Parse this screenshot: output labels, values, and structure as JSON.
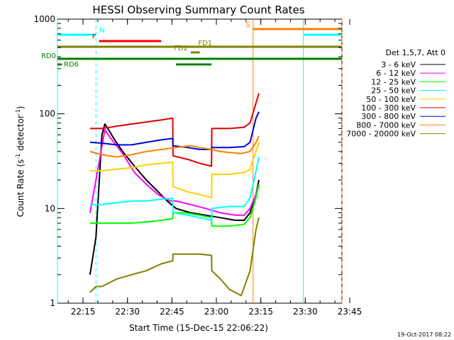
{
  "chart_data": {
    "type": "line",
    "title": "HESSI Observing Summary Count Rates",
    "xlabel": "Start Time (15-Dec-15 22:06:22)",
    "ylabel_main": "Count Rate (s",
    "ylabel_exp1": "-1",
    "ylabel_mid": " detector",
    "ylabel_exp2": "-1",
    "ylabel_end": ")",
    "yscale": "log",
    "ylim": [
      1,
      1000
    ],
    "xlim_minutes": [
      0,
      96
    ],
    "x_tick_labels": [
      "22:15",
      "22:30",
      "22:45",
      "23:00",
      "23:15",
      "23:30",
      "23:45"
    ],
    "x_tick_minutes": [
      8.63,
      23.63,
      38.63,
      53.63,
      68.63,
      83.63,
      98.63
    ],
    "y_tick_labels": [
      "1",
      "10",
      "100",
      "1000"
    ],
    "y_tick_values": [
      1,
      10,
      100,
      1000
    ],
    "legend_header": "Det 1,5,7, Att 0",
    "legend_position": "right",
    "series": [
      {
        "name": "3 - 6 keV",
        "color": "#000000",
        "points": [
          [
            11,
            2
          ],
          [
            13,
            5
          ],
          [
            15,
            60
          ],
          [
            16,
            78
          ],
          [
            17,
            70
          ],
          [
            19,
            55
          ],
          [
            22,
            40
          ],
          [
            26,
            28
          ],
          [
            30,
            20
          ],
          [
            34,
            15
          ],
          [
            37,
            12
          ],
          [
            40,
            10
          ],
          [
            45,
            9
          ],
          [
            50,
            8.5
          ],
          [
            55,
            8
          ],
          [
            60,
            7.5
          ],
          [
            63,
            7.5
          ],
          [
            65,
            9
          ],
          [
            67,
            14
          ],
          [
            68,
            20
          ]
        ]
      },
      {
        "name": "6 - 12 keV",
        "color": "#ff00ff",
        "points": [
          [
            11,
            9
          ],
          [
            14,
            30
          ],
          [
            16,
            68
          ],
          [
            18,
            55
          ],
          [
            22,
            38
          ],
          [
            26,
            24
          ],
          [
            30,
            18
          ],
          [
            34,
            14
          ],
          [
            38,
            12
          ],
          [
            40,
            12
          ],
          [
            45,
            11
          ],
          [
            50,
            10
          ],
          [
            55,
            9
          ],
          [
            60,
            8.5
          ],
          [
            63,
            8.5
          ],
          [
            65,
            10
          ],
          [
            67,
            14
          ],
          [
            68,
            18
          ]
        ]
      },
      {
        "name": "12 - 25 keV",
        "color": "#00ff00",
        "points": [
          [
            11,
            7
          ],
          [
            15,
            7
          ],
          [
            20,
            7
          ],
          [
            25,
            7
          ],
          [
            30,
            7.2
          ],
          [
            35,
            7.5
          ],
          [
            38.9,
            7.8
          ],
          [
            39,
            9
          ],
          [
            43,
            9
          ],
          [
            48,
            8.5
          ],
          [
            52,
            8
          ],
          [
            52.1,
            6.5
          ],
          [
            58,
            6.5
          ],
          [
            63,
            6.8
          ],
          [
            65,
            8
          ],
          [
            67,
            13
          ],
          [
            68,
            18
          ]
        ]
      },
      {
        "name": "25 - 50 keV",
        "color": "#00ffff",
        "points": [
          [
            11,
            11
          ],
          [
            15,
            11
          ],
          [
            20,
            11.5
          ],
          [
            25,
            12
          ],
          [
            30,
            12
          ],
          [
            35,
            12.5
          ],
          [
            38.9,
            12.8
          ],
          [
            39,
            9
          ],
          [
            44,
            8.5
          ],
          [
            48,
            8
          ],
          [
            52,
            7.5
          ],
          [
            52.1,
            10
          ],
          [
            58,
            10.5
          ],
          [
            63,
            10.5
          ],
          [
            65,
            13
          ],
          [
            67,
            25
          ],
          [
            68,
            35
          ]
        ]
      },
      {
        "name": "50 - 100 keV",
        "color": "#ffd000",
        "points": [
          [
            11,
            25
          ],
          [
            15,
            25
          ],
          [
            20,
            26
          ],
          [
            25,
            27
          ],
          [
            30,
            29
          ],
          [
            35,
            30
          ],
          [
            38.9,
            31
          ],
          [
            39,
            17
          ],
          [
            44,
            15
          ],
          [
            48,
            14
          ],
          [
            52,
            13
          ],
          [
            52.1,
            23
          ],
          [
            58,
            23
          ],
          [
            63,
            24
          ],
          [
            65,
            26
          ],
          [
            67,
            40
          ],
          [
            68,
            50
          ]
        ]
      },
      {
        "name": "100 - 300 keV",
        "color": "#dd0000",
        "points": [
          [
            11,
            70
          ],
          [
            15,
            70
          ],
          [
            20,
            74
          ],
          [
            25,
            78
          ],
          [
            30,
            82
          ],
          [
            35,
            86
          ],
          [
            38.9,
            90
          ],
          [
            39,
            36
          ],
          [
            44,
            33
          ],
          [
            48,
            30
          ],
          [
            52,
            28
          ],
          [
            52.1,
            70
          ],
          [
            58,
            70
          ],
          [
            63,
            72
          ],
          [
            65,
            80
          ],
          [
            67,
            130
          ],
          [
            68,
            165
          ]
        ]
      },
      {
        "name": "300 - 800 keV",
        "color": "#0000dd",
        "points": [
          [
            11,
            50
          ],
          [
            15,
            49
          ],
          [
            20,
            47
          ],
          [
            25,
            47
          ],
          [
            30,
            50
          ],
          [
            35,
            53
          ],
          [
            38.9,
            55
          ],
          [
            39,
            46
          ],
          [
            44,
            44
          ],
          [
            48,
            42
          ],
          [
            52,
            42
          ],
          [
            52.1,
            44
          ],
          [
            58,
            44
          ],
          [
            63,
            45
          ],
          [
            65,
            50
          ],
          [
            67,
            90
          ],
          [
            68,
            105
          ]
        ]
      },
      {
        "name": "800 - 7000 keV",
        "color": "#ff8000",
        "points": [
          [
            11,
            40
          ],
          [
            15,
            37
          ],
          [
            20,
            35
          ],
          [
            25,
            37
          ],
          [
            30,
            40
          ],
          [
            35,
            42
          ],
          [
            40,
            44
          ],
          [
            45,
            46
          ],
          [
            48,
            44
          ],
          [
            52,
            42
          ],
          [
            55,
            40
          ],
          [
            58,
            39
          ],
          [
            62,
            38
          ],
          [
            65,
            40
          ],
          [
            67,
            50
          ],
          [
            68,
            58
          ]
        ]
      },
      {
        "name": "7000 - 20000 keV",
        "color": "#808000",
        "points": [
          [
            11,
            1.3
          ],
          [
            13,
            1.5
          ],
          [
            15,
            1.5
          ],
          [
            20,
            1.8
          ],
          [
            25,
            2.0
          ],
          [
            30,
            2.2
          ],
          [
            35,
            2.6
          ],
          [
            38.9,
            2.8
          ],
          [
            39,
            3.3
          ],
          [
            44,
            3.3
          ],
          [
            48,
            3.3
          ],
          [
            52,
            3.2
          ],
          [
            52.1,
            2.2
          ],
          [
            55,
            1.8
          ],
          [
            58,
            1.4
          ],
          [
            62,
            1.2
          ],
          [
            65,
            2.2
          ],
          [
            67,
            6
          ],
          [
            68,
            8
          ]
        ]
      }
    ],
    "state_bars": [
      {
        "label": "N",
        "color": "#00ffff",
        "start": 0,
        "end": 13,
        "level_row": 1
      },
      {
        "label": "F",
        "color": "#ff0000",
        "start": 14,
        "end": 35,
        "level_row": 2
      },
      {
        "label": "S",
        "color": "#ff8000",
        "start": 66,
        "end": 96,
        "level_row": 0
      },
      {
        "label": "",
        "color": "#00ffff",
        "start": 83,
        "end": 96,
        "level_row": 1
      },
      {
        "label": "FD1",
        "color": "#808000",
        "start": 0,
        "end": 96,
        "level_row": 3
      },
      {
        "label": "FD2",
        "color": "#808000",
        "start": 45,
        "end": 48,
        "level_row": 4
      },
      {
        "label": "RD0",
        "color": "#008000",
        "start": 0,
        "end": 96,
        "level_row": 5
      },
      {
        "label": "RD6",
        "color": "#008000",
        "start": 0,
        "end": 1.5,
        "level_row": 6
      },
      {
        "label": "",
        "color": "#008000",
        "start": 40,
        "end": 52,
        "level_row": 6
      }
    ],
    "vertical_markers": [
      {
        "minute": 0,
        "color": "#00ffff",
        "style": "solid"
      },
      {
        "minute": 13,
        "color": "#00ffff",
        "style": "dashed"
      },
      {
        "minute": 66,
        "color": "#ff8000",
        "style": "solid"
      },
      {
        "minute": 83,
        "color": "#00ffff",
        "style": "solid"
      },
      {
        "minute": 96,
        "color": "#ff8000",
        "style": "dashed"
      }
    ],
    "grid": false
  },
  "footer": {
    "timestamp": "19-Oct-2017 08:22"
  }
}
